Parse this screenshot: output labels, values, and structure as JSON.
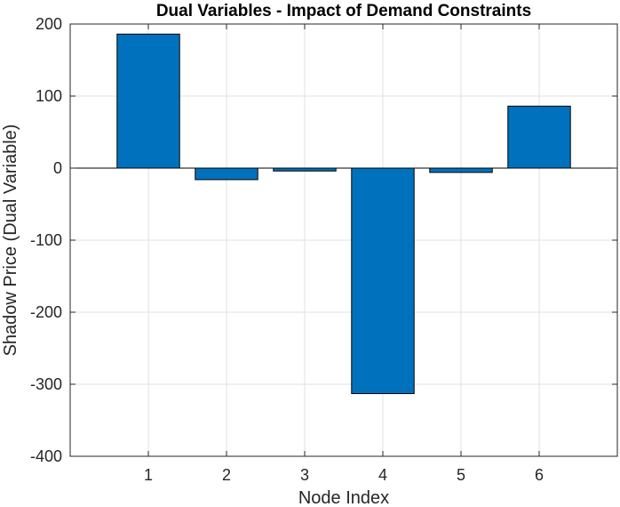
{
  "chart_data": {
    "type": "bar",
    "title": "Dual Variables - Impact of Demand Constraints",
    "xlabel": "Node Index",
    "ylabel": "Shadow Price (Dual Variable)",
    "categories": [
      "1",
      "2",
      "3",
      "4",
      "5",
      "6"
    ],
    "values": [
      186,
      -16,
      -4,
      -313,
      -6,
      86
    ],
    "xlim": [
      0,
      7
    ],
    "ylim": [
      -400,
      200
    ],
    "yticks": [
      -400,
      -300,
      -200,
      -100,
      0,
      100,
      200
    ],
    "grid": true,
    "bar_color": "#0072BD",
    "bar_edge_color": "#000000"
  }
}
